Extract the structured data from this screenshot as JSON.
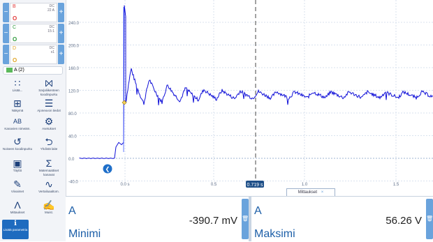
{
  "channels": [
    {
      "name": "B",
      "coupling": "DC",
      "range": "22 A",
      "color": "#e23a3a",
      "offset_marker": "O"
    },
    {
      "name": "C",
      "coupling": "DC",
      "range": "15:1",
      "color": "#2e9a3c",
      "offset_marker": "O"
    },
    {
      "name": "D",
      "coupling": "DC",
      "range": "x1",
      "color": "#e0a526",
      "offset_marker": "O"
    }
  ],
  "active_channel_pill": "A (2)",
  "tools": [
    {
      "icon": "grid-icon",
      "label": "Lisää..."
    },
    {
      "icon": "serial-decode-icon",
      "label": "Sarjaliikenteen koodinpurku"
    },
    {
      "icon": "view-icon",
      "label": "Näkymä"
    },
    {
      "icon": "clipboard-icon",
      "label": "Ajoneuvon tiedot"
    },
    {
      "icon": "channel-names-icon",
      "label": "Kanavien nimeäm."
    },
    {
      "icon": "gear-icon",
      "label": "Asetukset"
    },
    {
      "icon": "history-icon",
      "label": "Noiseen koodinpurku"
    },
    {
      "icon": "usb-icon",
      "label": "Yhdistä laite"
    },
    {
      "icon": "layout-icon",
      "label": "Täyttö"
    },
    {
      "icon": "sigma-icon",
      "label": "Matemaattiset kanavat"
    },
    {
      "icon": "pen-icon",
      "label": "Viivaimet"
    },
    {
      "icon": "reference-waveform-icon",
      "label": "Vertailuaaltom."
    },
    {
      "icon": "measure-icon",
      "label": "Mittaukset"
    },
    {
      "icon": "notes-icon",
      "label": "Muist."
    },
    {
      "icon": "info-icon",
      "label": "Lisätä parametria"
    }
  ],
  "plot": {
    "y_ticks": [
      "240.0",
      "200.0",
      "160.0",
      "120.0",
      "80.0",
      "40.0",
      "0.0",
      "-40.0"
    ],
    "x_ticks": [
      "0.0 s",
      "0.5",
      "1.0",
      "1.5"
    ],
    "cursor_label": "0.719 s",
    "trace_color": "#1010d8"
  },
  "measurements_tab": "Mittaukset",
  "cards": [
    {
      "channel": "A",
      "name": "Minimi",
      "value": "-390.7 mV"
    },
    {
      "channel": "A",
      "name": "Maksimi",
      "value": "56.26 V"
    }
  ]
}
